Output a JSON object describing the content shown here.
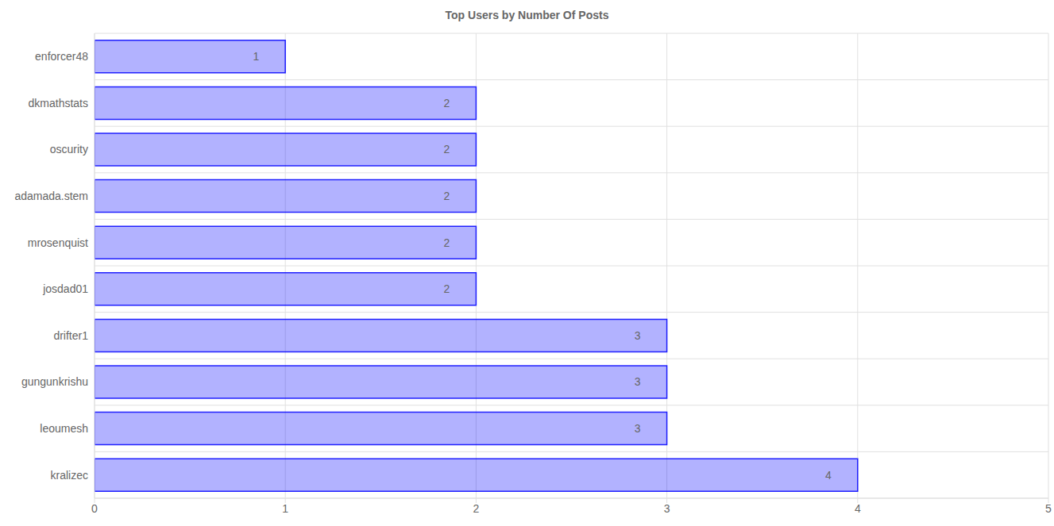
{
  "chart_data": {
    "type": "bar",
    "title": "Top Users by Number Of Posts",
    "orientation": "horizontal",
    "categories": [
      "enforcer48",
      "dkmathstats",
      "oscurity",
      "adamada.stem",
      "mrosenquist",
      "josdad01",
      "drifter1",
      "gungunkrishu",
      "leoumesh",
      "kralizec"
    ],
    "values": [
      1,
      2,
      2,
      2,
      2,
      2,
      3,
      3,
      3,
      4
    ],
    "color": "#0000ff",
    "xlim": [
      0,
      5
    ],
    "xticks": [
      0,
      1,
      2,
      3,
      4,
      5
    ],
    "grid": true,
    "data_labels": true
  }
}
